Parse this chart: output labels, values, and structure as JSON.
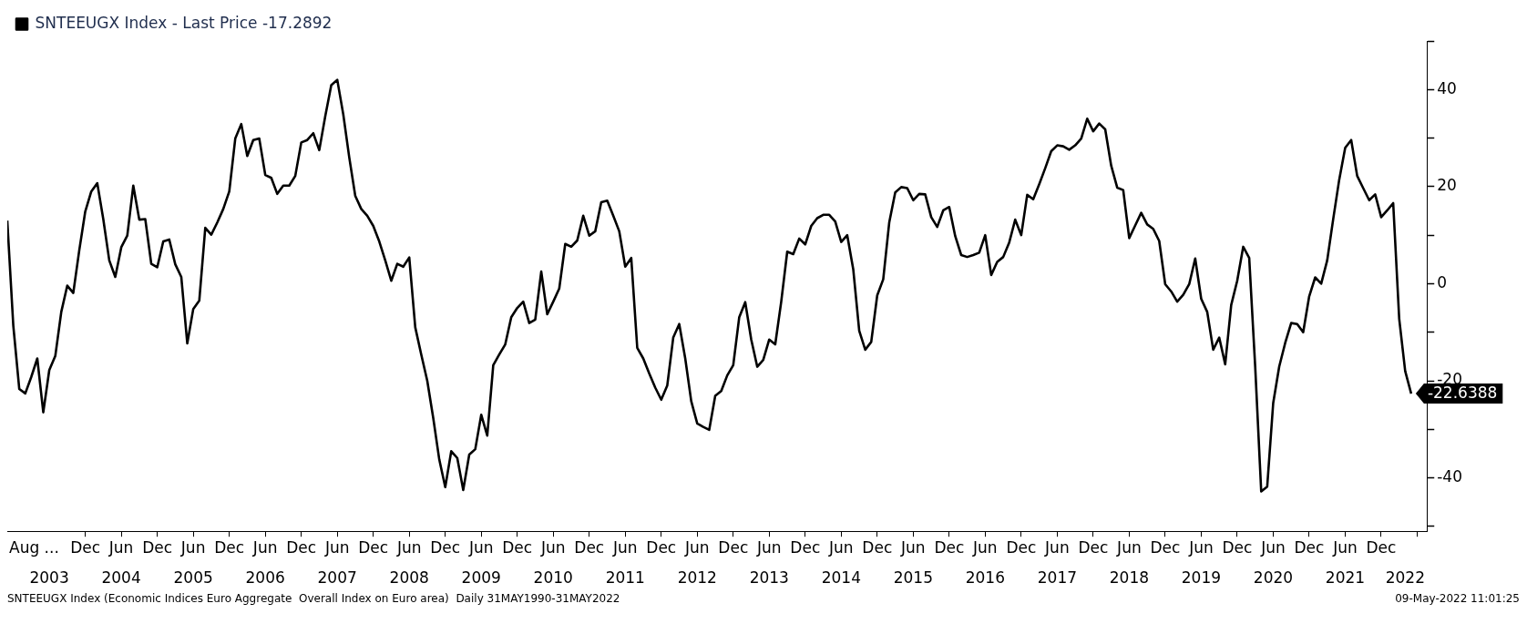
{
  "chart_data": {
    "type": "line",
    "legend": "top left",
    "marker": "none",
    "line_style": "solid",
    "x": [
      "2002-11",
      "2002-12",
      "2003-01",
      "2003-02",
      "2003-03",
      "2003-04",
      "2003-05",
      "2003-06",
      "2003-07",
      "2003-08",
      "2003-09",
      "2003-10",
      "2003-11",
      "2003-12",
      "2004-01",
      "2004-02",
      "2004-03",
      "2004-04",
      "2004-05",
      "2004-06",
      "2004-07",
      "2004-08",
      "2004-09",
      "2004-10",
      "2004-11",
      "2004-12",
      "2005-01",
      "2005-02",
      "2005-03",
      "2005-04",
      "2005-05",
      "2005-06",
      "2005-07",
      "2005-08",
      "2005-09",
      "2005-10",
      "2005-11",
      "2005-12",
      "2006-01",
      "2006-02",
      "2006-03",
      "2006-04",
      "2006-05",
      "2006-06",
      "2006-07",
      "2006-08",
      "2006-09",
      "2006-10",
      "2006-11",
      "2006-12",
      "2007-01",
      "2007-02",
      "2007-03",
      "2007-04",
      "2007-05",
      "2007-06",
      "2007-07",
      "2007-08",
      "2007-09",
      "2007-10",
      "2007-11",
      "2007-12",
      "2008-01",
      "2008-02",
      "2008-03",
      "2008-04",
      "2008-05",
      "2008-06",
      "2008-07",
      "2008-08",
      "2008-09",
      "2008-10",
      "2008-11",
      "2008-12",
      "2009-01",
      "2009-02",
      "2009-03",
      "2009-04",
      "2009-05",
      "2009-06",
      "2009-07",
      "2009-08",
      "2009-09",
      "2009-10",
      "2009-11",
      "2009-12",
      "2010-01",
      "2010-02",
      "2010-03",
      "2010-04",
      "2010-05",
      "2010-06",
      "2010-07",
      "2010-08",
      "2010-09",
      "2010-10",
      "2010-11",
      "2010-12",
      "2011-01",
      "2011-02",
      "2011-03",
      "2011-04",
      "2011-05",
      "2011-06",
      "2011-07",
      "2011-08",
      "2011-09",
      "2011-10",
      "2011-11",
      "2011-12",
      "2012-01",
      "2012-02",
      "2012-03",
      "2012-04",
      "2012-05",
      "2012-06",
      "2012-07",
      "2012-08",
      "2012-09",
      "2012-10",
      "2012-11",
      "2012-12",
      "2013-01",
      "2013-02",
      "2013-03",
      "2013-04",
      "2013-05",
      "2013-06",
      "2013-07",
      "2013-08",
      "2013-09",
      "2013-10",
      "2013-11",
      "2013-12",
      "2014-01",
      "2014-02",
      "2014-03",
      "2014-04",
      "2014-05",
      "2014-06",
      "2014-07",
      "2014-08",
      "2014-09",
      "2014-10",
      "2014-11",
      "2014-12",
      "2015-01",
      "2015-02",
      "2015-03",
      "2015-04",
      "2015-05",
      "2015-06",
      "2015-07",
      "2015-08",
      "2015-09",
      "2015-10",
      "2015-11",
      "2015-12",
      "2016-01",
      "2016-02",
      "2016-03",
      "2016-04",
      "2016-05",
      "2016-06",
      "2016-07",
      "2016-08",
      "2016-09",
      "2016-10",
      "2016-11",
      "2016-12",
      "2017-01",
      "2017-02",
      "2017-03",
      "2017-04",
      "2017-05",
      "2017-06",
      "2017-07",
      "2017-08",
      "2017-09",
      "2017-10",
      "2017-11",
      "2017-12",
      "2018-01",
      "2018-02",
      "2018-03",
      "2018-04",
      "2018-05",
      "2018-06",
      "2018-07",
      "2018-08",
      "2018-09",
      "2018-10",
      "2018-11",
      "2018-12",
      "2019-01",
      "2019-02",
      "2019-03",
      "2019-04",
      "2019-05",
      "2019-06",
      "2019-07",
      "2019-08",
      "2019-09",
      "2019-10",
      "2019-11",
      "2019-12",
      "2020-01",
      "2020-02",
      "2020-03",
      "2020-04",
      "2020-05",
      "2020-06",
      "2020-07",
      "2020-08",
      "2020-09",
      "2020-10",
      "2020-11",
      "2020-12",
      "2021-01",
      "2021-02",
      "2021-03",
      "2021-04",
      "2021-05",
      "2021-06",
      "2021-07",
      "2021-08",
      "2021-09",
      "2021-10",
      "2021-11",
      "2021-12",
      "2022-01",
      "2022-02",
      "2022-03",
      "2022-04",
      "2022-05"
    ],
    "series": [
      {
        "name": "SNTEEUGX Index - Last Price -17.2892",
        "color": "#000000",
        "values": [
          13.0,
          -8.6,
          -21.7,
          -22.6,
          -19.2,
          -15.4,
          -26.5,
          -17.8,
          -14.9,
          -5.8,
          -0.4,
          -1.9,
          6.9,
          14.9,
          19.0,
          20.7,
          13.3,
          4.8,
          1.4,
          7.5,
          9.9,
          20.2,
          13.2,
          13.3,
          4.1,
          3.4,
          8.7,
          9.1,
          4.0,
          1.4,
          -12.3,
          -5.2,
          -3.5,
          11.5,
          10.1,
          12.6,
          15.4,
          19.0,
          29.9,
          32.9,
          26.3,
          29.6,
          29.9,
          22.4,
          21.8,
          18.5,
          20.2,
          20.2,
          22.2,
          29.1,
          29.6,
          31.0,
          27.5,
          34.5,
          40.9,
          42.0,
          34.9,
          26.0,
          18.1,
          15.4,
          14.0,
          11.9,
          8.7,
          4.8,
          0.6,
          4.1,
          3.5,
          5.4,
          -9.0,
          -14.6,
          -20.0,
          -27.7,
          -36.2,
          -41.9,
          -34.5,
          -35.9,
          -42.5,
          -35.2,
          -34.1,
          -27.0,
          -31.3,
          -16.8,
          -14.6,
          -12.5,
          -6.9,
          -5.0,
          -3.7,
          -8.1,
          -7.4,
          2.5,
          -6.3,
          -3.7,
          -1.0,
          8.2,
          7.6,
          8.9,
          14.0,
          9.9,
          10.8,
          16.8,
          17.1,
          14.0,
          10.8,
          3.5,
          5.3,
          -13.2,
          -15.4,
          -18.5,
          -21.4,
          -23.9,
          -21.0,
          -11.1,
          -8.3,
          -15.4,
          -24.2,
          -28.8,
          -29.5,
          -30.1,
          -23.1,
          -22.1,
          -18.9,
          -16.8,
          -6.9,
          -3.8,
          -11.5,
          -17.1,
          -15.7,
          -11.5,
          -12.5,
          -3.7,
          6.6,
          6.1,
          9.3,
          8.1,
          11.9,
          13.5,
          14.2,
          14.2,
          12.8,
          8.6,
          10.0,
          3.0,
          -9.7,
          -13.6,
          -12.0,
          -2.4,
          0.9,
          12.6,
          18.8,
          19.9,
          19.7,
          17.2,
          18.5,
          18.4,
          13.7,
          11.7,
          15.1,
          15.8,
          9.8,
          5.9,
          5.5,
          5.9,
          6.4,
          10.0,
          1.8,
          4.5,
          5.5,
          8.5,
          13.2,
          10.0,
          18.3,
          17.4,
          20.5,
          23.8,
          27.3,
          28.5,
          28.3,
          27.6,
          28.5,
          29.9,
          34.0,
          31.4,
          33.0,
          31.8,
          24.3,
          19.8,
          19.3,
          9.4,
          12.0,
          14.6,
          12.2,
          11.3,
          8.8,
          -0.1,
          -1.6,
          -3.7,
          -2.3,
          -0.1,
          5.2,
          -3.1,
          -5.8,
          -13.6,
          -11.1,
          -16.6,
          -4.4,
          0.6,
          7.6,
          5.3,
          -17.1,
          -42.8,
          -41.8,
          -24.6,
          -17.1,
          -12.2,
          -8.1,
          -8.3,
          -10.0,
          -2.6,
          1.3,
          0.0,
          4.8,
          13.3,
          21.4,
          28.0,
          29.6,
          22.2,
          19.7,
          17.2,
          18.4,
          13.7,
          15.1,
          16.6,
          -7.2,
          -18.0,
          -22.6388
        ]
      }
    ],
    "xlim": [
      "2002-11",
      "2022-07-20"
    ],
    "x2lim": [
      "2002-11",
      "2022-07-20"
    ],
    "x2ticks": [
      {
        "value": "2003-06",
        "label": "2003"
      },
      {
        "value": "2004-06",
        "label": "2004"
      },
      {
        "value": "2005-06",
        "label": "2005"
      },
      {
        "value": "2006-06",
        "label": "2006"
      },
      {
        "value": "2007-06",
        "label": "2007"
      },
      {
        "value": "2008-06",
        "label": "2008"
      },
      {
        "value": "2009-06",
        "label": "2009"
      },
      {
        "value": "2010-06",
        "label": "2010"
      },
      {
        "value": "2011-06",
        "label": "2011"
      },
      {
        "value": "2012-06",
        "label": "2012"
      },
      {
        "value": "2013-06",
        "label": "2013"
      },
      {
        "value": "2014-06",
        "label": "2014"
      },
      {
        "value": "2015-06",
        "label": "2015"
      },
      {
        "value": "2016-06",
        "label": "2016"
      },
      {
        "value": "2017-06",
        "label": "2017"
      },
      {
        "value": "2018-06",
        "label": "2018"
      },
      {
        "value": "2019-06",
        "label": "2019"
      },
      {
        "value": "2020-06",
        "label": "2020"
      },
      {
        "value": "2021-06",
        "label": "2021"
      },
      {
        "value": "2022-04",
        "label": "2022"
      }
    ],
    "xticks": [
      {
        "value": "2003-12",
        "label": "Dec"
      },
      {
        "value": "2004-06",
        "label": "Jun"
      },
      {
        "value": "2004-12",
        "label": "Dec"
      },
      {
        "value": "2005-06",
        "label": "Jun"
      },
      {
        "value": "2005-12",
        "label": "Dec"
      },
      {
        "value": "2006-06",
        "label": "Jun"
      },
      {
        "value": "2006-12",
        "label": "Dec"
      },
      {
        "value": "2007-06",
        "label": "Jun"
      },
      {
        "value": "2007-12",
        "label": "Dec"
      },
      {
        "value": "2008-06",
        "label": "Jun"
      },
      {
        "value": "2008-12",
        "label": "Dec"
      },
      {
        "value": "2009-06",
        "label": "Jun"
      },
      {
        "value": "2009-12",
        "label": "Dec"
      },
      {
        "value": "2010-06",
        "label": "Jun"
      },
      {
        "value": "2010-12",
        "label": "Dec"
      },
      {
        "value": "2011-06",
        "label": "Jun"
      },
      {
        "value": "2011-12",
        "label": "Dec"
      },
      {
        "value": "2012-06",
        "label": "Jun"
      },
      {
        "value": "2012-12",
        "label": "Dec"
      },
      {
        "value": "2013-06",
        "label": "Jun"
      },
      {
        "value": "2013-12",
        "label": "Dec"
      },
      {
        "value": "2014-06",
        "label": "Jun"
      },
      {
        "value": "2014-12",
        "label": "Dec"
      },
      {
        "value": "2015-06",
        "label": "Jun"
      },
      {
        "value": "2015-12",
        "label": "Dec"
      },
      {
        "value": "2016-06",
        "label": "Jun"
      },
      {
        "value": "2016-12",
        "label": "Dec"
      },
      {
        "value": "2017-06",
        "label": "Jun"
      },
      {
        "value": "2017-12",
        "label": "Dec"
      },
      {
        "value": "2018-06",
        "label": "Jun"
      },
      {
        "value": "2018-12",
        "label": "Dec"
      },
      {
        "value": "2019-06",
        "label": "Jun"
      },
      {
        "value": "2019-12",
        "label": "Dec"
      },
      {
        "value": "2020-06",
        "label": "Jun"
      },
      {
        "value": "2020-12",
        "label": "Dec"
      },
      {
        "value": "2021-06",
        "label": "Jun"
      },
      {
        "value": "2021-12",
        "label": "Dec"
      },
      {
        "value": "2022-06",
        "label": null
      }
    ],
    "ylim": [
      -51,
      50
    ],
    "yticks": [
      {
        "value": -50,
        "label": null
      },
      -40,
      {
        "value": -30,
        "label": null
      },
      -20,
      {
        "value": -10,
        "label": null
      },
      0,
      {
        "value": 10,
        "label": null
      },
      20,
      {
        "value": 30,
        "label": null
      },
      40,
      {
        "value": 50,
        "label": null
      }
    ],
    "annotations": [
      {
        "text": "-22.6388",
        "x": "2022-05",
        "y": -22.6388
      },
      "Aug ...",
      "SNTEEUGX Index (Economic Indices Euro Aggregate  Overall Index on Euro area)  Daily 31MAY1990-31MAY2022",
      "09-May-2022 11:01:25"
    ]
  }
}
